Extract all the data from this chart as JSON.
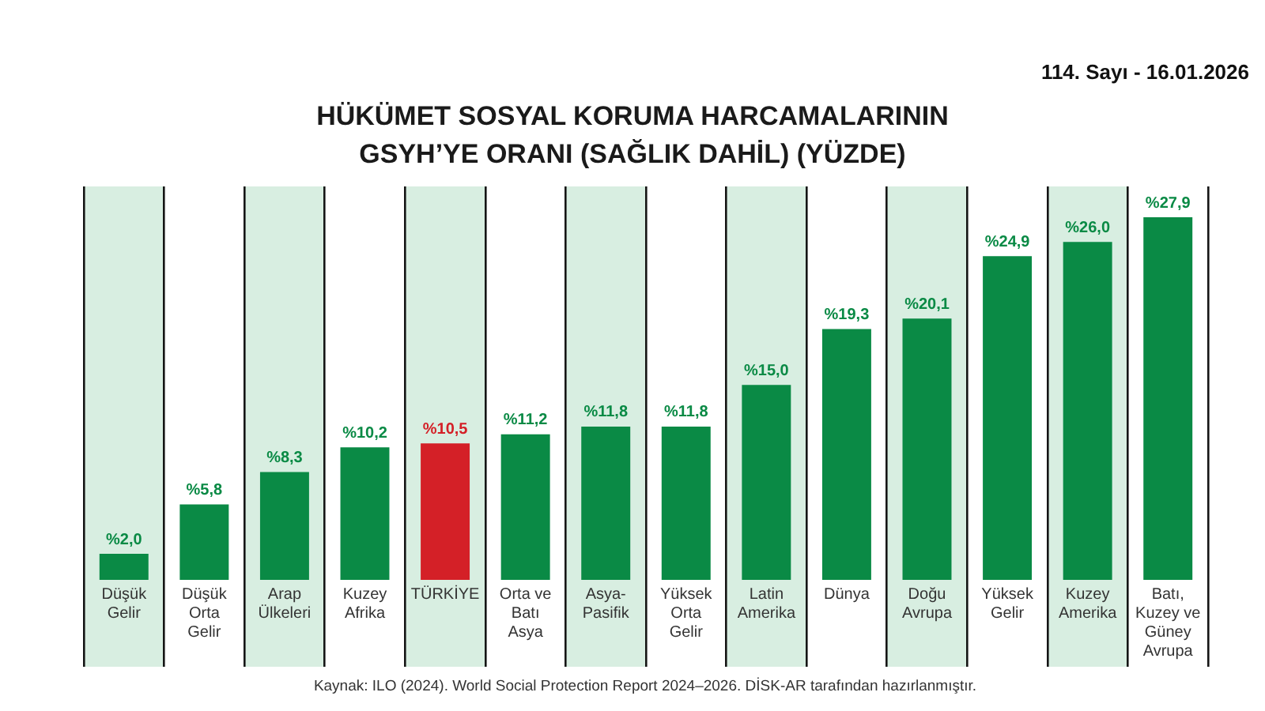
{
  "chart_data": {
    "type": "bar",
    "title": "HÜKÜMET SOSYAL KORUMA HARCAMALARININ GSYH’YE ORANI (SAĞLIK DAHİL) (YÜZDE)",
    "categories": [
      "Düşük Gelir",
      "Düşük Orta Gelir",
      "Arap Ülkeleri",
      "Kuzey Afrika",
      "TÜRKİYE",
      "Orta ve Batı Asya",
      "Asya-Pasifik",
      "Yüksek Orta Gelir",
      "Latin Amerika",
      "Dünya",
      "Doğu Avrupa",
      "Yüksek Gelir",
      "Kuzey Amerika",
      "Batı, Kuzey ve Güney Avrupa"
    ],
    "values": [
      2.0,
      5.8,
      8.3,
      10.2,
      10.5,
      11.2,
      11.8,
      11.8,
      15.0,
      19.3,
      20.1,
      24.9,
      26.0,
      27.9
    ],
    "value_labels": [
      "%2,0",
      "%5,8",
      "%8,3",
      "%10,2",
      "%10,5",
      "%11,2",
      "%11,8",
      "%11,8",
      "%15,0",
      "%19,3",
      "%20,1",
      "%24,9",
      "%26,0",
      "%27,9"
    ],
    "colors": [
      "#0a8a45",
      "#0a8a45",
      "#0a8a45",
      "#0a8a45",
      "#d42027",
      "#0a8a45",
      "#0a8a45",
      "#0a8a45",
      "#0a8a45",
      "#0a8a45",
      "#0a8a45",
      "#0a8a45",
      "#0a8a45",
      "#0a8a45"
    ],
    "grid": "x",
    "legend": false,
    "tick_labels": "x",
    "annotations": [
      "114. Sayı - 16.01.2026",
      "Kaynak: ILO (2024). World Social Protection Report 2024–2026. DİSK-AR tarafından hazırlanmıştır."
    ]
  }
}
